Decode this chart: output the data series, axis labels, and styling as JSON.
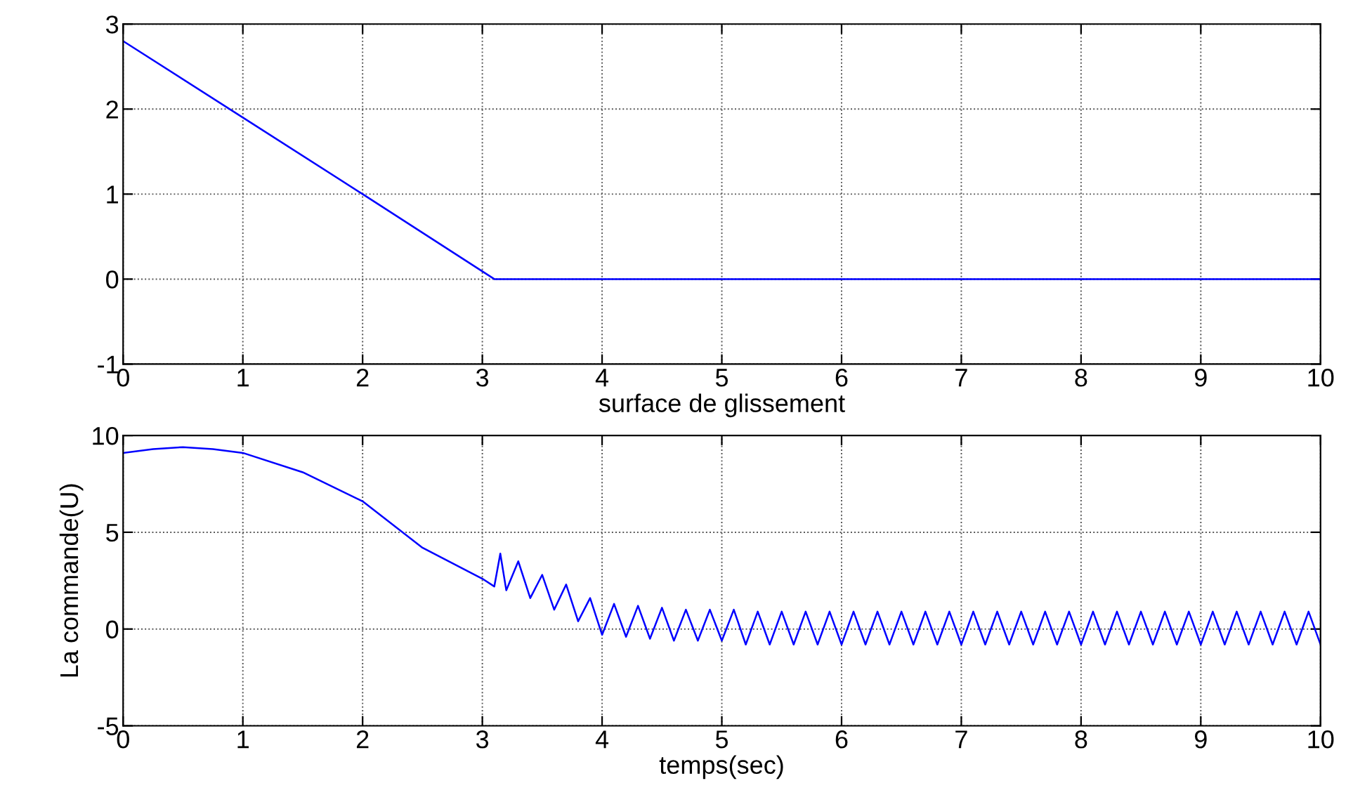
{
  "chart_data": [
    {
      "type": "line",
      "xlabel": "surface de glissement",
      "xlim": [
        0,
        10
      ],
      "xticks": [
        0,
        1,
        2,
        3,
        4,
        5,
        6,
        7,
        8,
        9,
        10
      ],
      "ylim": [
        -1,
        3
      ],
      "yticks": [
        -1,
        0,
        1,
        2,
        3
      ],
      "grid": true,
      "legend": false,
      "marker": "none",
      "line_style": "solid",
      "series": [
        {
          "color": "#0000ff",
          "x": [
            0,
            1,
            2,
            3.1,
            10
          ],
          "values": [
            2.8,
            1.9,
            1.0,
            0.0,
            0.0
          ]
        }
      ]
    },
    {
      "type": "line",
      "xlabel": "temps(sec)",
      "ylabel": "La commande(U)",
      "xlim": [
        0,
        10
      ],
      "xticks": [
        0,
        1,
        2,
        3,
        4,
        5,
        6,
        7,
        8,
        9,
        10
      ],
      "ylim": [
        -5,
        10
      ],
      "yticks": [
        -5,
        0,
        5,
        10
      ],
      "grid": true,
      "legend": false,
      "marker": "none",
      "line_style": "solid",
      "series": [
        {
          "color": "#0000ff",
          "x": [
            0,
            0.25,
            0.5,
            0.75,
            1,
            1.5,
            2,
            2.5,
            3,
            3.1,
            3.15,
            3.2,
            3.3,
            3.4,
            3.5,
            3.6,
            3.7,
            3.8,
            3.9,
            4.0,
            4.1,
            4.2,
            4.3,
            4.4,
            4.5,
            4.6,
            4.7,
            4.8,
            4.9,
            5.0,
            5.1,
            5.2,
            5.3,
            5.4,
            5.5,
            5.6,
            5.7,
            5.8,
            5.9,
            6.0,
            6.1,
            6.2,
            6.3,
            6.4,
            6.5,
            6.6,
            6.7,
            6.8,
            6.9,
            7.0,
            7.1,
            7.2,
            7.3,
            7.4,
            7.5,
            7.6,
            7.7,
            7.8,
            7.9,
            8.0,
            8.1,
            8.2,
            8.3,
            8.4,
            8.5,
            8.6,
            8.7,
            8.8,
            8.9,
            9.0,
            9.1,
            9.2,
            9.3,
            9.4,
            9.5,
            9.6,
            9.7,
            9.8,
            9.9,
            10.0
          ],
          "values": [
            9.1,
            9.3,
            9.4,
            9.3,
            9.1,
            8.1,
            6.6,
            4.2,
            2.6,
            2.2,
            3.9,
            2.0,
            3.5,
            1.6,
            2.8,
            1.0,
            2.3,
            0.4,
            1.6,
            -0.3,
            1.3,
            -0.4,
            1.2,
            -0.5,
            1.1,
            -0.6,
            1.0,
            -0.6,
            1.0,
            -0.6,
            1.0,
            -0.8,
            0.9,
            -0.8,
            0.9,
            -0.8,
            0.9,
            -0.8,
            0.9,
            -0.8,
            0.9,
            -0.8,
            0.9,
            -0.8,
            0.9,
            -0.8,
            0.9,
            -0.8,
            0.9,
            -0.8,
            0.9,
            -0.8,
            0.9,
            -0.8,
            0.9,
            -0.8,
            0.9,
            -0.8,
            0.9,
            -0.8,
            0.9,
            -0.8,
            0.9,
            -0.8,
            0.9,
            -0.8,
            0.9,
            -0.8,
            0.9,
            -0.8,
            0.9,
            -0.8,
            0.9,
            -0.8,
            0.9,
            -0.8,
            0.9,
            -0.8,
            0.9,
            -0.8
          ]
        }
      ]
    }
  ]
}
